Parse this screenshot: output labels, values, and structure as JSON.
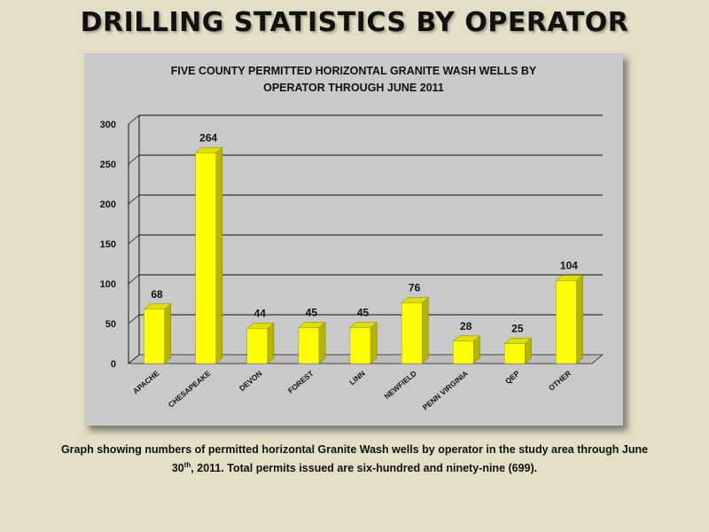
{
  "slide": {
    "title": "DRILLING STATISTICS BY OPERATOR"
  },
  "caption": {
    "part1": "Graph showing numbers of permitted horizontal Granite Wash wells by operator in the study area through June 30",
    "superscript": "th",
    "part2": ", 2011.  Total permits issued are six-hundred and ninety-nine (699)."
  },
  "colors": {
    "background": "#e3dfc7",
    "panel": "#c9c9c9",
    "bar_front": "#ffff00",
    "bar_side": "#b5b500",
    "bar_top": "#e0e000"
  },
  "chart_data": {
    "type": "bar",
    "title_line1": "FIVE COUNTY PERMITTED HORIZONTAL GRANITE WASH WELLS BY",
    "title_line2": "OPERATOR THROUGH JUNE 2011",
    "categories": [
      "APACHE",
      "CHESAPEAKE",
      "DEVON",
      "FOREST",
      "LINN",
      "NEWFIELD",
      "PENN VIRGINIA",
      "QEP",
      "OTHER"
    ],
    "values": [
      68,
      264,
      44,
      45,
      45,
      76,
      28,
      25,
      104
    ],
    "xlabel": "",
    "ylabel": "",
    "ylim": [
      0,
      300
    ],
    "yticks": [
      0,
      50,
      100,
      150,
      200,
      250,
      300
    ],
    "grid": true,
    "legend": "none",
    "style": "3d"
  }
}
